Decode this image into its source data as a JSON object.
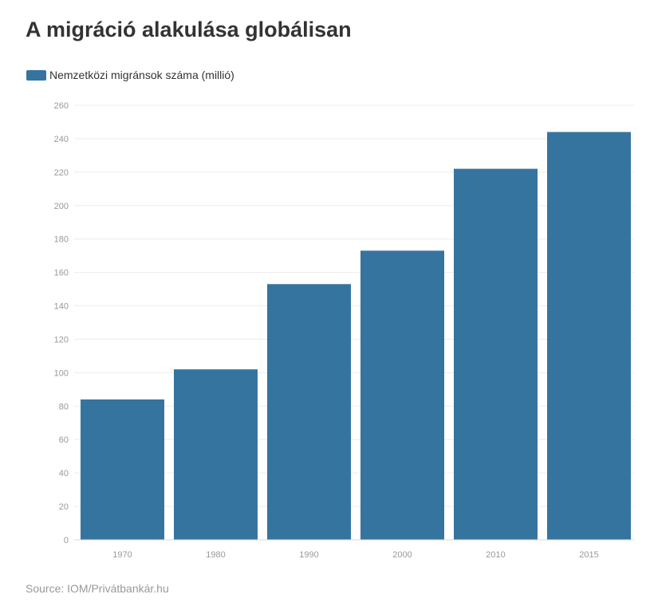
{
  "title": "A migráció alakulása globálisan",
  "source": "Source: IOM/Privátbankár.hu",
  "colors": {
    "bar": "#3674a0",
    "grid": "#ececec",
    "tick_text": "#999999",
    "axis": "#d9d9d9"
  },
  "chart_data": {
    "type": "bar",
    "title": "A migráció alakulása globálisan",
    "categories": [
      "1970",
      "1980",
      "1990",
      "2000",
      "2010",
      "2015"
    ],
    "series": [
      {
        "name": "Nemzetközi migránsok száma (millió)",
        "values": [
          84,
          102,
          153,
          173,
          222,
          244
        ]
      }
    ],
    "ylim": [
      0,
      260
    ],
    "yticks": [
      0,
      20,
      40,
      60,
      80,
      100,
      120,
      140,
      160,
      180,
      200,
      220,
      240,
      260
    ],
    "xlabel": "",
    "ylabel": "",
    "grid": true,
    "legend": "top-left"
  }
}
